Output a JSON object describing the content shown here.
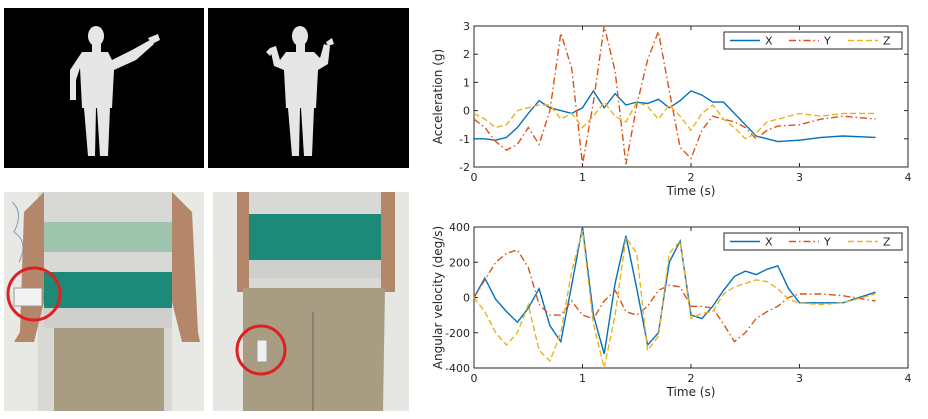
{
  "panels": {
    "depth_left": "depth-silhouette-arm-raised",
    "depth_right": "depth-silhouette-both-hands-up",
    "photo_left": "photo-wrist-sensor",
    "photo_right": "photo-thigh-sensor"
  },
  "chart_data": [
    {
      "type": "line",
      "xlabel": "Time (s)",
      "ylabel": "Acceleration (g)",
      "xlim": [
        0,
        4
      ],
      "ylim": [
        -2,
        3
      ],
      "xticks": [
        0,
        1,
        2,
        3,
        4
      ],
      "yticks": [
        -2,
        -1,
        0,
        1,
        2,
        3
      ],
      "legend": "top-right",
      "series": [
        {
          "name": "X",
          "color": "#0072BD",
          "style": "solid",
          "x": [
            0,
            0.1,
            0.2,
            0.3,
            0.4,
            0.5,
            0.6,
            0.7,
            0.8,
            0.9,
            1.0,
            1.1,
            1.2,
            1.3,
            1.4,
            1.5,
            1.6,
            1.7,
            1.8,
            1.9,
            2.0,
            2.1,
            2.2,
            2.3,
            2.4,
            2.5,
            2.6,
            2.7,
            2.8,
            3.0,
            3.2,
            3.4,
            3.7
          ],
          "y": [
            -1.0,
            -1.0,
            -1.05,
            -0.95,
            -0.6,
            -0.1,
            0.35,
            0.1,
            0.0,
            -0.1,
            0.1,
            0.7,
            0.1,
            0.6,
            0.2,
            0.3,
            0.25,
            0.4,
            0.1,
            0.35,
            0.7,
            0.55,
            0.3,
            0.3,
            -0.1,
            -0.5,
            -0.9,
            -1.0,
            -1.1,
            -1.05,
            -0.95,
            -0.9,
            -0.95
          ]
        },
        {
          "name": "Y",
          "color": "#D95319",
          "style": "dashdot",
          "x": [
            0,
            0.1,
            0.2,
            0.3,
            0.4,
            0.5,
            0.6,
            0.7,
            0.8,
            0.9,
            1.0,
            1.1,
            1.2,
            1.3,
            1.4,
            1.5,
            1.6,
            1.7,
            1.8,
            1.9,
            2.0,
            2.1,
            2.2,
            2.3,
            2.4,
            2.5,
            2.6,
            2.7,
            2.8,
            3.0,
            3.2,
            3.4,
            3.7
          ],
          "y": [
            -0.3,
            -0.6,
            -1.1,
            -1.4,
            -1.2,
            -0.6,
            -1.2,
            0.0,
            2.75,
            1.5,
            -1.9,
            0.3,
            3.0,
            1.4,
            -1.9,
            0.2,
            1.8,
            2.8,
            0.7,
            -1.3,
            -1.7,
            -0.7,
            -0.2,
            -0.3,
            -0.4,
            -0.6,
            -1.0,
            -0.7,
            -0.55,
            -0.5,
            -0.3,
            -0.2,
            -0.3
          ]
        },
        {
          "name": "Z",
          "color": "#EDB120",
          "style": "dashed",
          "x": [
            0,
            0.1,
            0.2,
            0.3,
            0.4,
            0.5,
            0.6,
            0.7,
            0.8,
            0.9,
            1.0,
            1.1,
            1.2,
            1.3,
            1.4,
            1.5,
            1.6,
            1.7,
            1.8,
            1.9,
            2.0,
            2.1,
            2.2,
            2.3,
            2.4,
            2.5,
            2.6,
            2.7,
            2.8,
            3.0,
            3.2,
            3.4,
            3.7
          ],
          "y": [
            -0.1,
            -0.3,
            -0.6,
            -0.5,
            0.0,
            0.1,
            0.2,
            0.2,
            -0.3,
            -0.1,
            -0.6,
            -0.2,
            0.3,
            -0.2,
            -0.4,
            0.3,
            0.15,
            -0.3,
            0.2,
            -0.2,
            -0.7,
            -0.1,
            0.2,
            -0.3,
            -0.6,
            -1.0,
            -0.8,
            -0.4,
            -0.3,
            -0.1,
            -0.2,
            -0.1,
            -0.1
          ]
        }
      ]
    },
    {
      "type": "line",
      "xlabel": "Time (s)",
      "ylabel": "Angular velocity (deg/s)",
      "xlim": [
        0,
        4
      ],
      "ylim": [
        -400,
        400
      ],
      "xticks": [
        0,
        1,
        2,
        3,
        4
      ],
      "yticks": [
        -400,
        -200,
        0,
        200,
        400
      ],
      "legend": "top-right",
      "series": [
        {
          "name": "X",
          "color": "#0072BD",
          "style": "solid",
          "x": [
            0,
            0.1,
            0.2,
            0.3,
            0.4,
            0.5,
            0.6,
            0.7,
            0.8,
            0.9,
            1.0,
            1.1,
            1.2,
            1.3,
            1.4,
            1.5,
            1.6,
            1.7,
            1.8,
            1.9,
            2.0,
            2.1,
            2.2,
            2.3,
            2.4,
            2.5,
            2.6,
            2.7,
            2.8,
            2.9,
            3.0,
            3.2,
            3.4,
            3.7
          ],
          "y": [
            0,
            110,
            -10,
            -80,
            -140,
            -60,
            50,
            -160,
            -250,
            70,
            400,
            -100,
            -320,
            80,
            350,
            50,
            -270,
            -200,
            200,
            320,
            -100,
            -120,
            -50,
            40,
            120,
            150,
            130,
            160,
            180,
            50,
            -30,
            -30,
            -30,
            30
          ]
        },
        {
          "name": "Y",
          "color": "#D95319",
          "style": "dashdot",
          "x": [
            0,
            0.1,
            0.2,
            0.3,
            0.4,
            0.5,
            0.6,
            0.7,
            0.8,
            0.9,
            1.0,
            1.1,
            1.2,
            1.3,
            1.4,
            1.5,
            1.6,
            1.7,
            1.8,
            1.9,
            2.0,
            2.1,
            2.2,
            2.3,
            2.4,
            2.5,
            2.6,
            2.7,
            2.8,
            2.9,
            3.0,
            3.2,
            3.4,
            3.7
          ],
          "y": [
            0,
            100,
            200,
            250,
            270,
            170,
            -40,
            -100,
            -100,
            -20,
            -100,
            -120,
            -20,
            40,
            -80,
            -100,
            -50,
            40,
            70,
            60,
            -50,
            -50,
            -60,
            -150,
            -250,
            -200,
            -120,
            -80,
            -50,
            0,
            20,
            20,
            10,
            -20
          ]
        },
        {
          "name": "Z",
          "color": "#EDB120",
          "style": "dashed",
          "x": [
            0,
            0.1,
            0.2,
            0.3,
            0.4,
            0.5,
            0.6,
            0.7,
            0.8,
            0.9,
            1.0,
            1.1,
            1.2,
            1.3,
            1.4,
            1.5,
            1.6,
            1.7,
            1.8,
            1.9,
            2.0,
            2.1,
            2.2,
            2.3,
            2.4,
            2.5,
            2.6,
            2.7,
            2.8,
            2.9,
            3.0,
            3.2,
            3.4,
            3.7
          ],
          "y": [
            0,
            -80,
            -200,
            -270,
            -200,
            -40,
            -300,
            -360,
            -200,
            150,
            380,
            -150,
            -400,
            -100,
            340,
            250,
            -300,
            -220,
            250,
            320,
            -120,
            -90,
            -80,
            20,
            60,
            80,
            100,
            90,
            50,
            -10,
            -30,
            -40,
            -30,
            20
          ]
        }
      ]
    }
  ]
}
